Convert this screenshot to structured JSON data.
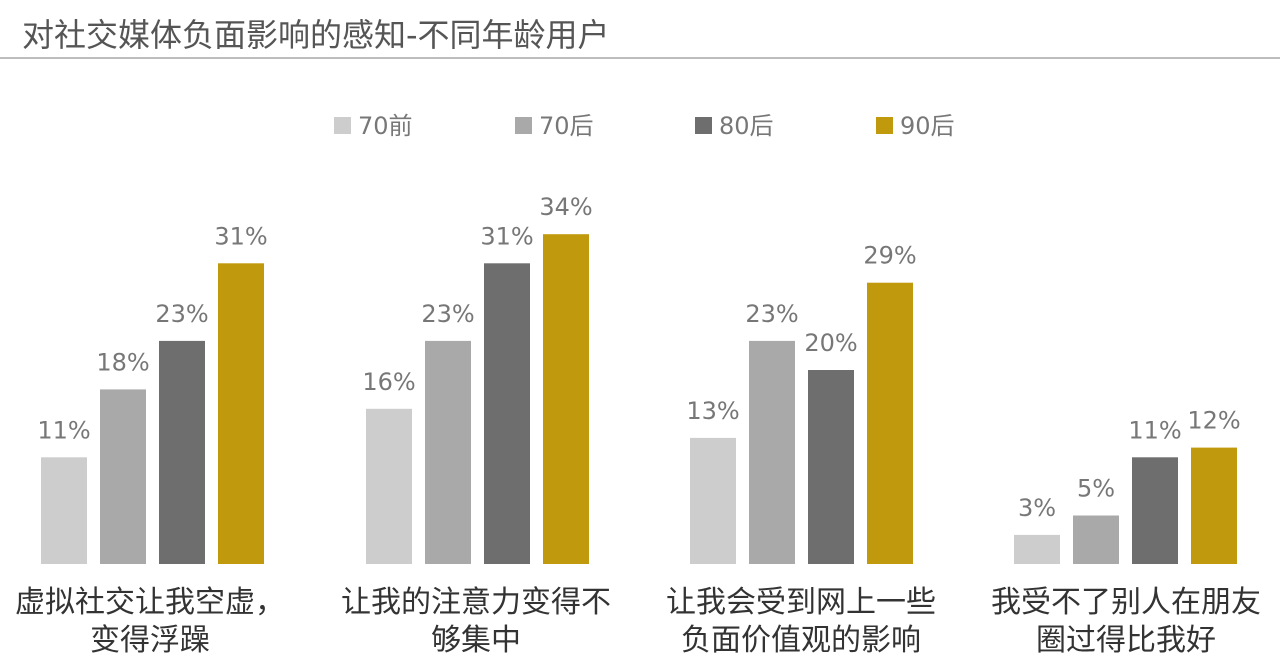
{
  "title": "对社交媒体负面影响的感知-不同年龄用户",
  "chart_data": {
    "type": "bar",
    "title": "对社交媒体负面影响的感知-不同年龄用户",
    "categories": [
      "虚拟社交让我空虚，变得浮躁",
      "让我的注意力变得不够集中",
      "让我会受到网上一些负面价值观的影响",
      "我受不了别人在朋友圈过得比我好"
    ],
    "category_lines": [
      [
        "虚拟社交让我空虚，",
        "变得浮躁"
      ],
      [
        "让我的注意力变得不",
        "够集中"
      ],
      [
        "让我会受到网上一些",
        "负面价值观的影响"
      ],
      [
        "我受不了别人在朋友",
        "圈过得比我好"
      ]
    ],
    "series": [
      {
        "name": "70前",
        "color": "#cdcdcd",
        "values": [
          11,
          16,
          13,
          3
        ],
        "labels": [
          "11%",
          "16%",
          "13%",
          "3%"
        ]
      },
      {
        "name": "70后",
        "color": "#a9a9a9",
        "values": [
          18,
          23,
          23,
          5
        ],
        "labels": [
          "18%",
          "23%",
          "23%",
          "5%"
        ]
      },
      {
        "name": "80后",
        "color": "#6e6e6e",
        "values": [
          23,
          31,
          20,
          11
        ],
        "labels": [
          "23%",
          "31%",
          "20%",
          "11%"
        ]
      },
      {
        "name": "90后",
        "color": "#c09a0c",
        "values": [
          31,
          34,
          29,
          12
        ],
        "labels": [
          "31%",
          "34%",
          "29%",
          "12%"
        ]
      }
    ],
    "unit": "%",
    "ylim": [
      0,
      40
    ],
    "grid": false,
    "legend_position": "top"
  }
}
